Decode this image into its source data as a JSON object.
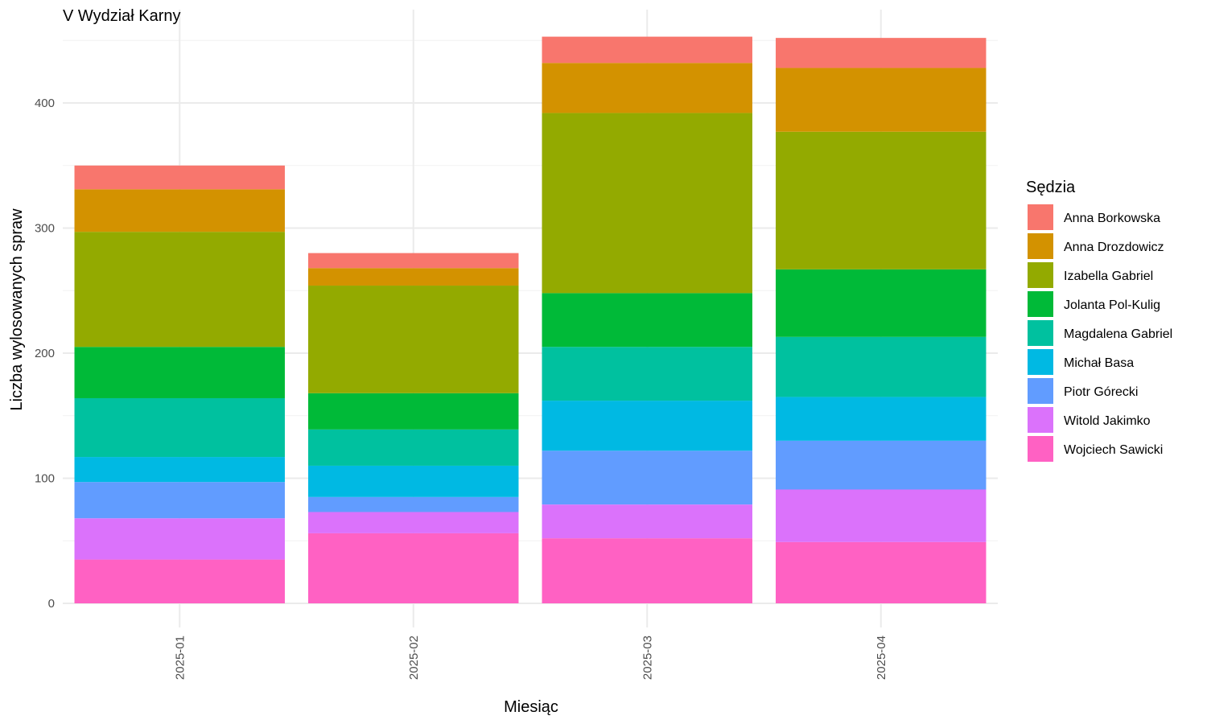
{
  "chart_data": {
    "type": "bar",
    "stacked": true,
    "title": "V Wydział Karny",
    "xlabel": "Miesiąc",
    "ylabel": "Liczba wylosowanych spraw",
    "ylim": [
      0,
      460
    ],
    "yticks": [
      0,
      100,
      200,
      300,
      400
    ],
    "grid": true,
    "legend_title": "Sędzia",
    "legend_position": "right",
    "categories": [
      "2025-01",
      "2025-02",
      "2025-03",
      "2025-04"
    ],
    "series": [
      {
        "name": "Anna Borkowska",
        "color": "#F8766D",
        "values": [
          19,
          12,
          21,
          24
        ]
      },
      {
        "name": "Anna Drozdowicz",
        "color": "#D39200",
        "values": [
          34,
          14,
          40,
          51
        ]
      },
      {
        "name": "Izabella Gabriel",
        "color": "#93AA00",
        "values": [
          92,
          86,
          144,
          110
        ]
      },
      {
        "name": "Jolanta Pol-Kulig",
        "color": "#00BA38",
        "values": [
          41,
          29,
          43,
          54
        ]
      },
      {
        "name": "Magdalena Gabriel",
        "color": "#00C19F",
        "values": [
          47,
          29,
          43,
          48
        ]
      },
      {
        "name": "Michał Basa",
        "color": "#00B9E3",
        "values": [
          20,
          25,
          40,
          35
        ]
      },
      {
        "name": "Piotr Górecki",
        "color": "#619CFF",
        "values": [
          29,
          12,
          43,
          39
        ]
      },
      {
        "name": "Witold Jakimko",
        "color": "#DB72FB",
        "values": [
          33,
          17,
          27,
          42
        ]
      },
      {
        "name": "Wojciech Sawicki",
        "color": "#FF61C3",
        "values": [
          35,
          56,
          52,
          49
        ]
      }
    ]
  }
}
